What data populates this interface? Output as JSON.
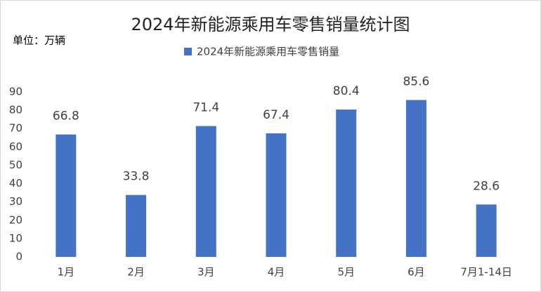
{
  "chart_data": {
    "type": "bar",
    "title": "2024年新能源乘用车零售销量统计图",
    "unit_label": "单位：万辆",
    "categories": [
      "1月",
      "2月",
      "3月",
      "4月",
      "5月",
      "6月",
      "7月1-14日"
    ],
    "series": [
      {
        "name": "2024年新能源乘用车零售销量",
        "color": "#4472c4",
        "values": [
          66.8,
          33.8,
          71.4,
          67.4,
          80.4,
          85.6,
          28.6
        ]
      }
    ],
    "ylim": [
      0,
      90
    ],
    "yticks": [
      0,
      10,
      20,
      30,
      40,
      50,
      60,
      70,
      80,
      90
    ],
    "grid": false,
    "legend": "top"
  }
}
